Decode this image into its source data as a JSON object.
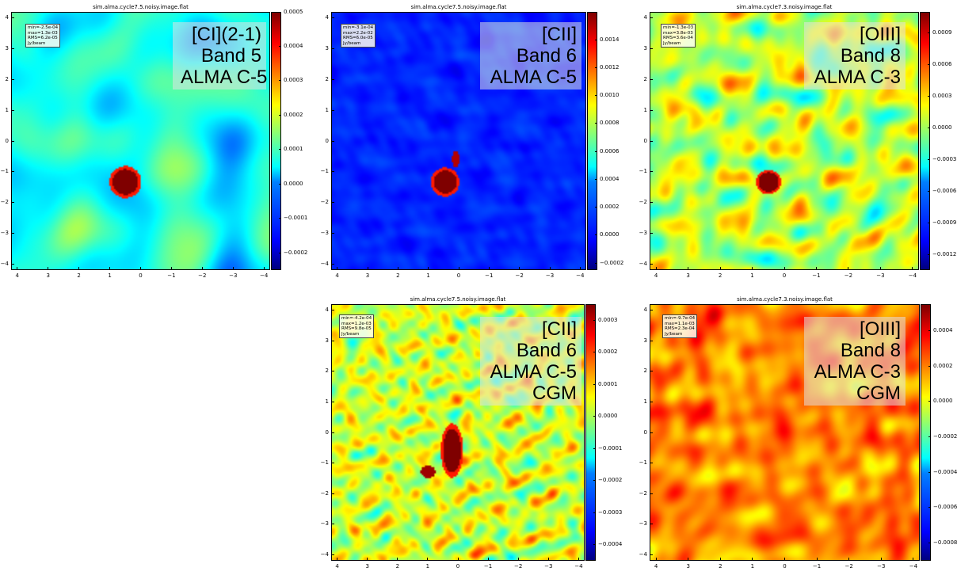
{
  "chart_data": [
    {
      "type": "heatmap",
      "title": "sim.alma.cycle7.5.noisy.image.flat",
      "xticks": [
        "4",
        "3",
        "2",
        "1",
        "0",
        "−1",
        "−2",
        "−3",
        "−4"
      ],
      "yticks": [
        "4",
        "3",
        "2",
        "1",
        "0",
        "−1",
        "−2",
        "−3",
        "−4"
      ],
      "xlim": [
        4.2,
        -4.2
      ],
      "ylim": [
        -4.2,
        4.2
      ],
      "colorbar_ticks": [
        "0.0005",
        "0.0004",
        "0.0003",
        "0.0002",
        "0.0001",
        "0.0000",
        "−0.0001",
        "−0.0002"
      ],
      "colorbar_range": [
        -0.00025,
        0.0005
      ],
      "stats": [
        "min=-2.5e-04",
        "max=1.3e-03",
        "RMS=6.2e-05",
        "Jy/beam"
      ],
      "label": [
        "[CI](2-1)",
        "Band 5",
        "ALMA C-5"
      ],
      "source": {
        "x": 0.5,
        "y": -1.35
      },
      "colormap": "jet",
      "style": {
        "base": 0.4,
        "amp": 0.2,
        "freq": 1.3,
        "srcR": 0.42,
        "elong": 1.0
      }
    },
    {
      "type": "heatmap",
      "title": "sim.alma.cycle7.5.noisy.image.flat",
      "xticks": [
        "4",
        "3",
        "2",
        "1",
        "0",
        "−1",
        "−2",
        "−3",
        "−4"
      ],
      "yticks": [
        "4",
        "3",
        "2",
        "1",
        "0",
        "−1",
        "−2",
        "−3",
        "−4"
      ],
      "xlim": [
        4.2,
        -4.2
      ],
      "ylim": [
        -4.2,
        4.2
      ],
      "colorbar_ticks": [
        "0.0014",
        "0.0012",
        "0.0010",
        "0.0008",
        "0.0006",
        "0.0004",
        "0.0002",
        "0.0000",
        "−0.0002"
      ],
      "colorbar_range": [
        -0.00025,
        0.0016
      ],
      "stats": [
        "min=-3.1e-04",
        "max=2.2e-02",
        "RMS=6.0e-05",
        "Jy/beam"
      ],
      "label": [
        "[CII]",
        "Band 6",
        "ALMA C-5"
      ],
      "source": {
        "x": 0.45,
        "y": -1.35
      },
      "colormap": "jet",
      "style": {
        "base": 0.16,
        "amp": 0.06,
        "freq": 4.0,
        "srcR": 0.38,
        "elong": 1.0
      }
    },
    {
      "type": "heatmap",
      "title": "sim.alma.cycle7.3.noisy.image.flat",
      "xticks": [
        "4",
        "3",
        "2",
        "1",
        "0",
        "−1",
        "−2",
        "−3",
        "−4"
      ],
      "yticks": [
        "4",
        "3",
        "2",
        "1",
        "0",
        "−1",
        "−2",
        "−3",
        "−4"
      ],
      "xlim": [
        4.2,
        -4.2
      ],
      "ylim": [
        -4.2,
        4.2
      ],
      "colorbar_ticks": [
        "0.0009",
        "0.0006",
        "0.0003",
        "0.0000",
        "−0.0003",
        "−0.0006",
        "−0.0009",
        "−0.0012"
      ],
      "colorbar_range": [
        -0.00135,
        0.0011
      ],
      "stats": [
        "min=-1.3e-03",
        "max=3.8e-03",
        "RMS=3.6e-04",
        "Jy/beam"
      ],
      "label": [
        "[OIII]",
        "Band 8",
        "ALMA C-3"
      ],
      "source": {
        "x": 0.5,
        "y": -1.35
      },
      "colormap": "jet",
      "style": {
        "base": 0.56,
        "amp": 0.32,
        "freq": 3.2,
        "srcR": 0.32,
        "elong": 1.0
      }
    },
    {
      "type": "heatmap",
      "title": "sim.alma.cycle7.5.noisy.image.flat",
      "xticks": [
        "4",
        "3",
        "2",
        "1",
        "0",
        "−1",
        "−2",
        "−3",
        "−4"
      ],
      "yticks": [
        "4",
        "3",
        "2",
        "1",
        "0",
        "−1",
        "−2",
        "−3",
        "−4"
      ],
      "xlim": [
        4.2,
        -4.2
      ],
      "ylim": [
        -4.2,
        4.2
      ],
      "colorbar_ticks": [
        "0.0003",
        "0.0002",
        "0.0001",
        "0.0000",
        "−0.0001",
        "−0.0002",
        "−0.0003",
        "−0.0004"
      ],
      "colorbar_range": [
        -0.00045,
        0.00035
      ],
      "stats": [
        "min=-4.2e-04",
        "max=1.2e-03",
        "RMS=9.8e-05",
        "Jy/beam"
      ],
      "label": [
        "[CII]",
        "Band 6",
        "ALMA C-5",
        "CGM"
      ],
      "source": {
        "x": 0.2,
        "y": -0.6
      },
      "colormap": "jet",
      "style": {
        "base": 0.58,
        "amp": 0.3,
        "freq": 5.2,
        "srcR": 0.3,
        "elong": 2.4
      }
    },
    {
      "type": "heatmap",
      "title": "sim.alma.cycle7.3.noisy.image.flat",
      "xticks": [
        "4",
        "3",
        "2",
        "1",
        "0",
        "−1",
        "−2",
        "−3",
        "−4"
      ],
      "yticks": [
        "4",
        "3",
        "2",
        "1",
        "0",
        "−1",
        "−2",
        "−3",
        "−4"
      ],
      "xlim": [
        4.2,
        -4.2
      ],
      "ylim": [
        -4.2,
        4.2
      ],
      "colorbar_ticks": [
        "0.0004",
        "0.0002",
        "0.0000",
        "−0.0002",
        "−0.0004",
        "−0.0006",
        "−0.0008"
      ],
      "colorbar_range": [
        -0.0009,
        0.00055
      ],
      "stats": [
        "min=-9.7e-04",
        "max=1.1e-03",
        "RMS=2.3e-04",
        "Jy/beam"
      ],
      "label": [
        "[OIII]",
        "Band 8",
        "ALMA C-3",
        "CGM"
      ],
      "source": null,
      "colormap": "jet",
      "style": {
        "base": 0.74,
        "amp": 0.22,
        "freq": 2.6,
        "srcR": 0.0,
        "elong": 1.0
      }
    }
  ]
}
